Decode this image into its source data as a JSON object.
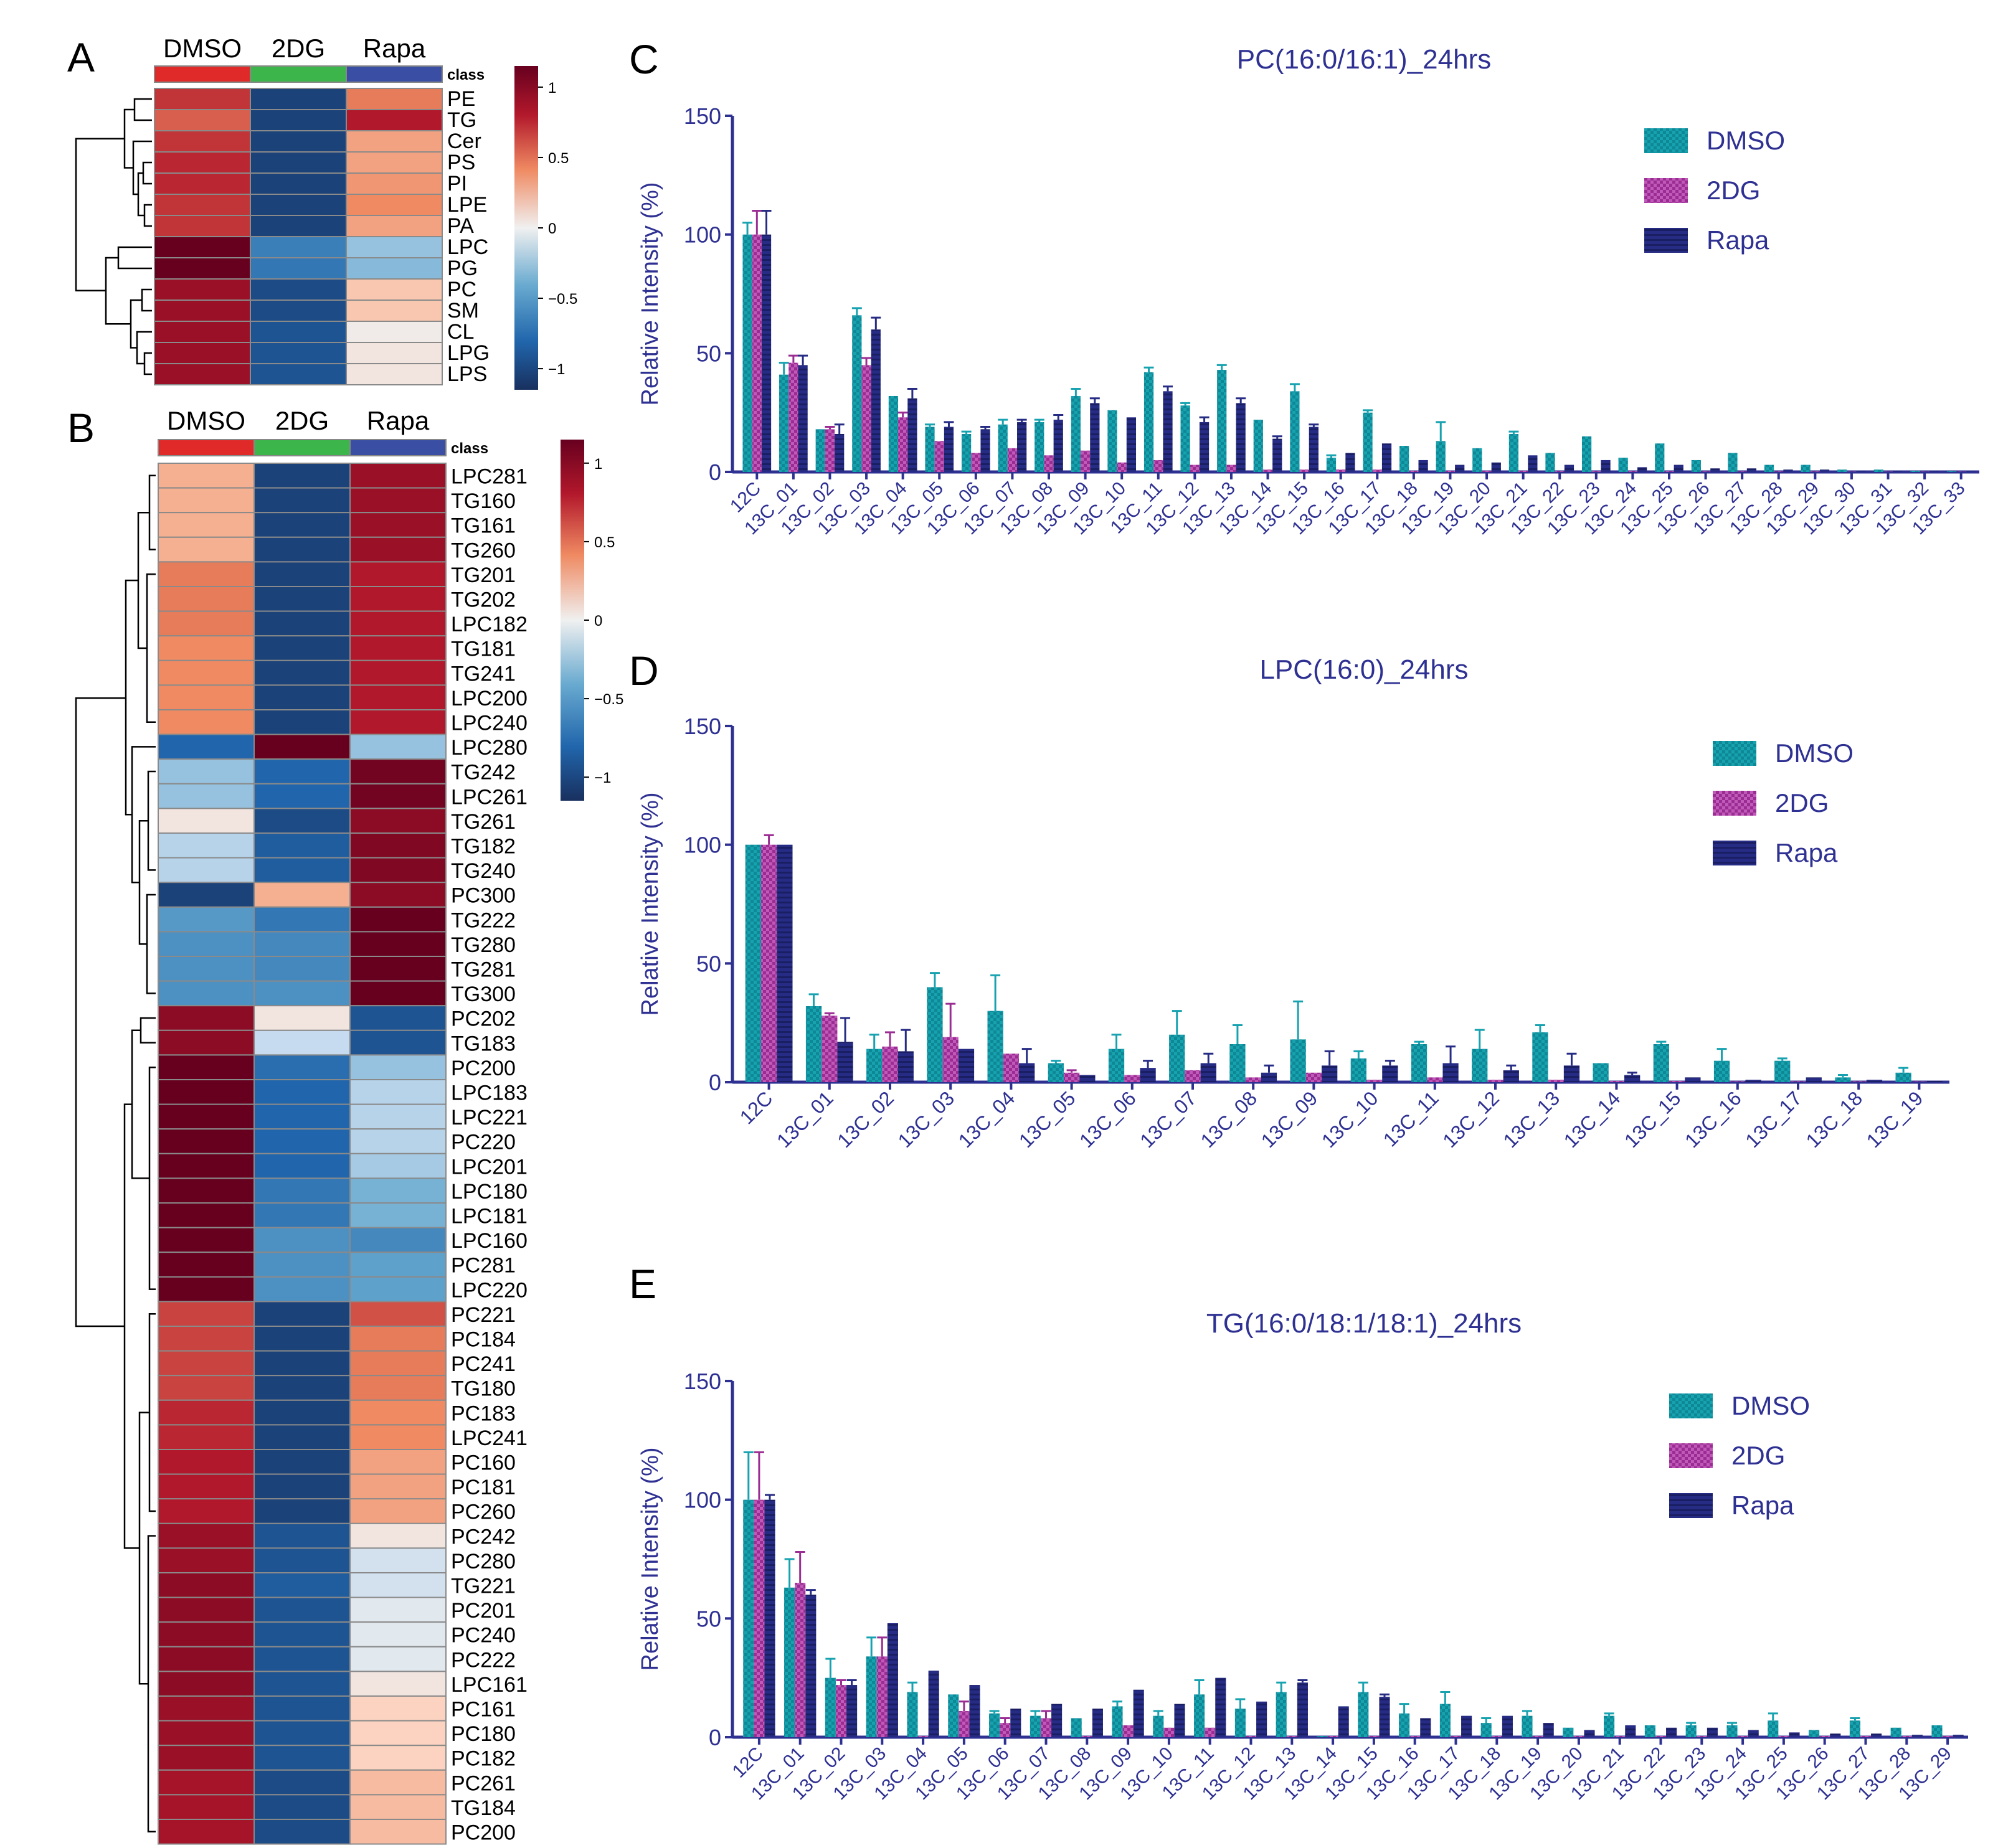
{
  "panel_letters": [
    "A",
    "B",
    "C",
    "D",
    "E"
  ],
  "heatmap_common": {
    "groups": [
      "DMSO",
      "2DG",
      "Rapa"
    ],
    "group_colors": [
      "#e02a2a",
      "#3cb54a",
      "#3a4fa3"
    ],
    "class_label": "class",
    "colorbar_ticks": [
      "1",
      "0.5",
      "0",
      "−0.5",
      "−1"
    ],
    "colorbar_tick_values": [
      1,
      0.5,
      0,
      -0.5,
      -1
    ]
  },
  "chart_data": [
    {
      "panel": "A",
      "type": "heatmap",
      "columns": [
        "DMSO",
        "2DG",
        "Rapa"
      ],
      "rows": [
        "PE",
        "TG",
        "Cer",
        "PS",
        "PI",
        "LPE",
        "PA",
        "LPC",
        "PG",
        "PC",
        "SM",
        "CL",
        "LPG",
        "LPS"
      ],
      "values": [
        [
          0.75,
          -1.05,
          0.5
        ],
        [
          0.6,
          -1.05,
          0.85
        ],
        [
          0.75,
          -1.05,
          0.35
        ],
        [
          0.8,
          -1.05,
          0.35
        ],
        [
          0.8,
          -1.05,
          0.4
        ],
        [
          0.75,
          -1.05,
          0.45
        ],
        [
          0.75,
          -1.05,
          0.35
        ],
        [
          1.15,
          -0.7,
          -0.3
        ],
        [
          1.15,
          -0.75,
          -0.35
        ],
        [
          0.95,
          -1.0,
          0.2
        ],
        [
          0.95,
          -1.0,
          0.2
        ],
        [
          0.95,
          -0.95,
          0.02
        ],
        [
          0.95,
          -0.95,
          0.05
        ],
        [
          0.95,
          -0.95,
          0.05
        ]
      ],
      "colorbar_range": [
        -1.15,
        1.15
      ]
    },
    {
      "panel": "B",
      "type": "heatmap",
      "columns": [
        "DMSO",
        "2DG",
        "Rapa"
      ],
      "rows": [
        "LPC281",
        "TG160",
        "TG161",
        "TG260",
        "TG201",
        "TG202",
        "LPC182",
        "TG181",
        "TG241",
        "LPC200",
        "LPC240",
        "LPC280",
        "TG242",
        "LPC261",
        "TG261",
        "TG182",
        "TG240",
        "PC300",
        "TG222",
        "TG280",
        "TG281",
        "TG300",
        "PC202",
        "TG183",
        "PC200",
        "LPC183",
        "LPC221",
        "PC220",
        "LPC201",
        "LPC180",
        "LPC181",
        "LPC160",
        "PC281",
        "LPC220",
        "PC221",
        "PC184",
        "PC241",
        "TG180",
        "PC183",
        "LPC241",
        "PC160",
        "PC181",
        "PC260",
        "PC242",
        "PC280",
        "TG221",
        "PC201",
        "PC240",
        "PC222",
        "LPC161",
        "PC161",
        "PC180",
        "PC182",
        "PC261",
        "TG184",
        "PC200"
      ],
      "values": [
        [
          0.3,
          -1.05,
          0.95
        ],
        [
          0.3,
          -1.05,
          0.95
        ],
        [
          0.3,
          -1.05,
          0.95
        ],
        [
          0.3,
          -1.05,
          0.95
        ],
        [
          0.5,
          -1.05,
          0.85
        ],
        [
          0.5,
          -1.05,
          0.85
        ],
        [
          0.5,
          -1.05,
          0.85
        ],
        [
          0.45,
          -1.05,
          0.85
        ],
        [
          0.45,
          -1.05,
          0.85
        ],
        [
          0.45,
          -1.05,
          0.85
        ],
        [
          0.45,
          -1.05,
          0.85
        ],
        [
          -0.85,
          1.15,
          -0.3
        ],
        [
          -0.3,
          -0.85,
          1.1
        ],
        [
          -0.3,
          -0.85,
          1.1
        ],
        [
          0.05,
          -1.0,
          1.0
        ],
        [
          -0.2,
          -0.9,
          1.05
        ],
        [
          -0.2,
          -0.9,
          1.05
        ],
        [
          -1.05,
          0.3,
          1.0
        ],
        [
          -0.55,
          -0.75,
          1.15
        ],
        [
          -0.6,
          -0.65,
          1.15
        ],
        [
          -0.6,
          -0.65,
          1.15
        ],
        [
          -0.6,
          -0.6,
          1.15
        ],
        [
          1.0,
          0.05,
          -0.95
        ],
        [
          1.0,
          -0.15,
          -0.95
        ],
        [
          1.15,
          -0.8,
          -0.3
        ],
        [
          1.15,
          -0.85,
          -0.2
        ],
        [
          1.15,
          -0.85,
          -0.2
        ],
        [
          1.15,
          -0.85,
          -0.2
        ],
        [
          1.15,
          -0.85,
          -0.25
        ],
        [
          1.15,
          -0.75,
          -0.4
        ],
        [
          1.15,
          -0.75,
          -0.4
        ],
        [
          1.15,
          -0.6,
          -0.65
        ],
        [
          1.15,
          -0.6,
          -0.5
        ],
        [
          1.15,
          -0.6,
          -0.5
        ],
        [
          0.7,
          -1.05,
          0.65
        ],
        [
          0.7,
          -1.05,
          0.5
        ],
        [
          0.7,
          -1.05,
          0.5
        ],
        [
          0.7,
          -1.05,
          0.5
        ],
        [
          0.8,
          -1.05,
          0.45
        ],
        [
          0.8,
          -1.05,
          0.45
        ],
        [
          0.85,
          -1.05,
          0.35
        ],
        [
          0.85,
          -1.05,
          0.35
        ],
        [
          0.85,
          -1.05,
          0.35
        ],
        [
          0.95,
          -0.95,
          0.05
        ],
        [
          0.95,
          -0.95,
          -0.1
        ],
        [
          1.0,
          -0.9,
          -0.1
        ],
        [
          1.0,
          -0.95,
          -0.05
        ],
        [
          1.0,
          -0.95,
          -0.05
        ],
        [
          1.0,
          -0.95,
          -0.05
        ],
        [
          1.0,
          -0.95,
          0.05
        ],
        [
          0.95,
          -0.95,
          0.15
        ],
        [
          0.95,
          -0.95,
          0.15
        ],
        [
          0.95,
          -0.95,
          0.15
        ],
        [
          0.9,
          -1.0,
          0.25
        ],
        [
          0.9,
          -1.0,
          0.25
        ],
        [
          0.9,
          -1.0,
          0.25
        ]
      ],
      "colorbar_range": [
        -1.15,
        1.15
      ]
    },
    {
      "panel": "C",
      "type": "bar",
      "title": "PC(16:0/16:1)_24hrs",
      "ylabel": "Relative Intensity (%)",
      "ylim": [
        0,
        150
      ],
      "yticks": [
        0,
        50,
        100,
        150
      ],
      "categories": [
        "12C",
        "13C_01",
        "13C_02",
        "13C_03",
        "13C_04",
        "13C_05",
        "13C_06",
        "13C_07",
        "13C_08",
        "13C_09",
        "13C_10",
        "13C_11",
        "13C_12",
        "13C_13",
        "13C_14",
        "13C_15",
        "13C_16",
        "13C_17",
        "13C_18",
        "13C_19",
        "13C_20",
        "13C_21",
        "13C_22",
        "13C_23",
        "13C_24",
        "13C_25",
        "13C_26",
        "13C_27",
        "13C_28",
        "13C_29",
        "13C_30",
        "13C_31",
        "13C_32",
        "13C_33"
      ],
      "legend": [
        "DMSO",
        "2DG",
        "Rapa"
      ],
      "series": [
        {
          "name": "DMSO",
          "values": [
            100,
            41,
            18,
            66,
            32,
            19,
            16,
            20,
            21,
            32,
            26,
            42,
            28,
            43,
            22,
            34,
            6,
            25,
            11,
            13,
            10,
            16,
            8,
            15,
            6,
            12,
            5,
            8,
            3,
            3,
            1,
            1,
            0.5,
            0.3
          ],
          "errors": [
            5,
            5,
            0,
            3,
            0,
            1,
            1,
            2,
            1,
            3,
            0,
            2,
            1,
            2,
            0,
            3,
            1,
            1,
            0,
            8,
            0,
            1,
            0,
            0,
            0,
            0,
            0,
            0,
            0,
            0,
            0,
            0,
            0,
            0
          ]
        },
        {
          "name": "2DG",
          "values": [
            100,
            46,
            18,
            45,
            23,
            13,
            8,
            10,
            7,
            9,
            4,
            5,
            3,
            3,
            1,
            1,
            1,
            1,
            0.5,
            0.5,
            0.5,
            0.5,
            0.3,
            0.3,
            0.3,
            0.3,
            0.2,
            0.2,
            0.2,
            0.2,
            0.1,
            0.1,
            0.1,
            0.1
          ],
          "errors": [
            10,
            3,
            1,
            3,
            2,
            0,
            0,
            0,
            0,
            0,
            0,
            0,
            0,
            0,
            0,
            0,
            0,
            0,
            0,
            0,
            0,
            0,
            0,
            0,
            0,
            0,
            0,
            0,
            0,
            0,
            0,
            0,
            0,
            0
          ]
        },
        {
          "name": "Rapa",
          "values": [
            100,
            45,
            16,
            60,
            31,
            19,
            18,
            21,
            22,
            29,
            23,
            34,
            21,
            29,
            14,
            19,
            8,
            12,
            5,
            3,
            4,
            7,
            3,
            5,
            2,
            3,
            1.5,
            1.5,
            1,
            1,
            0.5,
            0.5,
            0.3,
            0.2
          ],
          "errors": [
            10,
            4,
            4,
            5,
            4,
            2,
            1,
            1,
            2,
            2,
            0,
            2,
            2,
            2,
            1,
            1,
            0,
            0,
            0,
            0,
            0,
            0,
            0,
            0,
            0,
            0,
            0,
            0,
            0,
            0,
            0,
            0,
            0,
            0
          ]
        }
      ]
    },
    {
      "panel": "D",
      "type": "bar",
      "title": "LPC(16:0)_24hrs",
      "ylabel": "Relative Intensity (%)",
      "ylim": [
        0,
        150
      ],
      "yticks": [
        0,
        50,
        100,
        150
      ],
      "categories": [
        "12C",
        "13C_01",
        "13C_02",
        "13C_03",
        "13C_04",
        "13C_05",
        "13C_06",
        "13C_07",
        "13C_08",
        "13C_09",
        "13C_10",
        "13C_11",
        "13C_12",
        "13C_13",
        "13C_14",
        "13C_15",
        "13C_16",
        "13C_17",
        "13C_18",
        "13C_19"
      ],
      "legend": [
        "DMSO",
        "2DG",
        "Rapa"
      ],
      "series": [
        {
          "name": "DMSO",
          "values": [
            100,
            32,
            14,
            40,
            30,
            8,
            14,
            20,
            16,
            18,
            10,
            16,
            14,
            21,
            8,
            16,
            9,
            9,
            2,
            4
          ],
          "errors": [
            0,
            5,
            6,
            6,
            15,
            1,
            6,
            10,
            8,
            16,
            3,
            1,
            8,
            3,
            0,
            1,
            5,
            1,
            1,
            2
          ]
        },
        {
          "name": "2DG",
          "values": [
            100,
            28,
            15,
            19,
            12,
            4,
            3,
            5,
            2,
            4,
            1,
            2,
            1,
            1,
            0.5,
            0.5,
            0.3,
            0.3,
            0.3,
            0.2
          ],
          "errors": [
            4,
            1,
            6,
            14,
            0,
            1,
            0,
            0,
            0,
            0,
            0,
            0,
            0,
            0,
            0,
            0,
            0,
            0,
            0,
            0
          ]
        },
        {
          "name": "Rapa",
          "values": [
            100,
            17,
            13,
            14,
            8,
            3,
            6,
            8,
            4,
            7,
            7,
            8,
            5,
            7,
            3,
            2,
            1,
            2,
            1,
            0.5
          ],
          "errors": [
            0,
            10,
            9,
            0,
            6,
            0,
            3,
            4,
            3,
            6,
            2,
            7,
            2,
            5,
            1,
            0,
            0,
            0,
            0,
            0
          ]
        }
      ]
    },
    {
      "panel": "E",
      "type": "bar",
      "title": "TG(16:0/18:1/18:1)_24hrs",
      "ylabel": "Relative Intensity (%)",
      "ylim": [
        0,
        150
      ],
      "yticks": [
        0,
        50,
        100,
        150
      ],
      "categories": [
        "12C",
        "13C_01",
        "13C_02",
        "13C_03",
        "13C_04",
        "13C_05",
        "13C_06",
        "13C_07",
        "13C_08",
        "13C_09",
        "13C_10",
        "13C_11",
        "13C_12",
        "13C_13",
        "13C_14",
        "13C_15",
        "13C_16",
        "13C_17",
        "13C_18",
        "13C_19",
        "13C_20",
        "13C_21",
        "13C_22",
        "13C_23",
        "13C_24",
        "13C_25",
        "13C_26",
        "13C_27",
        "13C_28",
        "13C_29"
      ],
      "legend": [
        "DMSO",
        "2DG",
        "Rapa"
      ],
      "series": [
        {
          "name": "DMSO",
          "values": [
            100,
            63,
            25,
            34,
            19,
            18,
            10,
            9,
            8,
            13,
            9,
            18,
            12,
            19,
            0.5,
            19,
            10,
            14,
            6,
            9,
            4,
            9,
            5,
            5,
            5,
            7,
            3,
            7,
            4,
            5
          ],
          "errors": [
            20,
            12,
            8,
            8,
            4,
            0,
            1,
            2,
            0,
            2,
            2,
            6,
            4,
            4,
            0,
            4,
            4,
            5,
            2,
            2,
            0,
            1,
            0,
            1,
            1,
            3,
            0,
            1,
            0,
            0
          ]
        },
        {
          "name": "2DG",
          "values": [
            100,
            65,
            22,
            34,
            0.5,
            11,
            6,
            8,
            0.5,
            5,
            4,
            4,
            0.5,
            0.5,
            0.5,
            0.5,
            0.5,
            0.5,
            0.5,
            0.5,
            0.5,
            0.5,
            0.5,
            0.5,
            0.5,
            0.5,
            0.5,
            0.5,
            0.5,
            0.5
          ],
          "errors": [
            20,
            13,
            2,
            8,
            0,
            4,
            2,
            3,
            0,
            0,
            0,
            0,
            0,
            0,
            0,
            0,
            0,
            0,
            0,
            0,
            0,
            0,
            0,
            0,
            0,
            0,
            0,
            0,
            0,
            0
          ]
        },
        {
          "name": "Rapa",
          "values": [
            100,
            60,
            22,
            48,
            28,
            22,
            12,
            14,
            12,
            20,
            14,
            25,
            15,
            23,
            13,
            17,
            8,
            9,
            9,
            6,
            3,
            5,
            4,
            4,
            3,
            2,
            1.5,
            1.5,
            1,
            1
          ],
          "errors": [
            2,
            2,
            2,
            0,
            0,
            0,
            0,
            0,
            0,
            0,
            0,
            0,
            0,
            1,
            0,
            1,
            0,
            0,
            0,
            0,
            0,
            0,
            0,
            0,
            0,
            0,
            0,
            0,
            0,
            0
          ]
        }
      ]
    }
  ],
  "colors": {
    "dmso": "#17a2b0",
    "dmso_dark": "#0f7f8c",
    "twodg": "#9b2c93",
    "twodg_dark": "#6d1c69",
    "rapa": "#262b84",
    "rapa_dark": "#151959",
    "axis": "#2e3192",
    "text": "#000000",
    "dendro": "#000000"
  }
}
